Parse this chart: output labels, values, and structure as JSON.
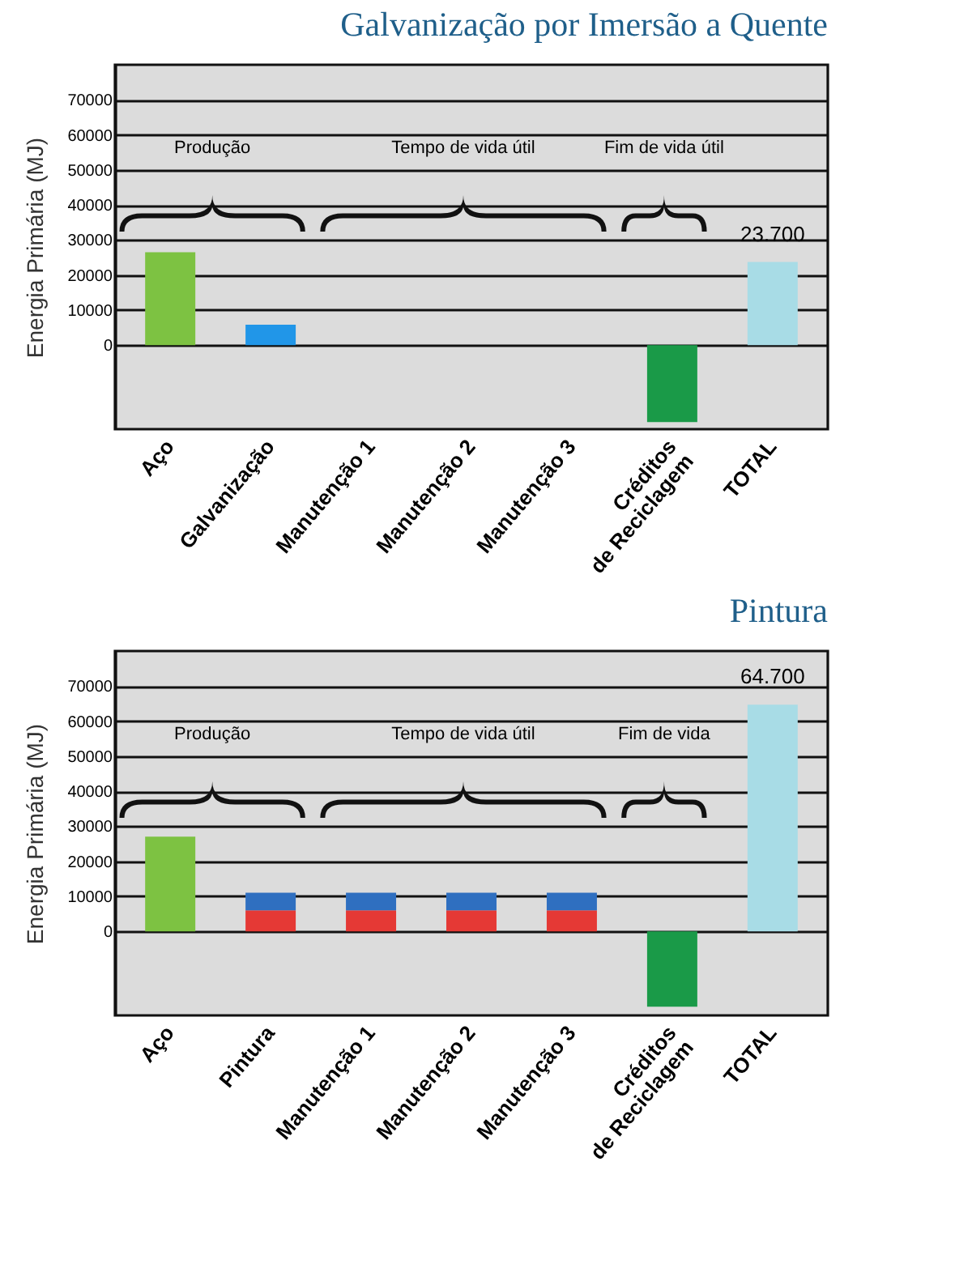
{
  "chart_data": [
    {
      "type": "bar",
      "title": "Galvanização por Imersão a Quente",
      "ylabel": "Energia Primária (MJ)",
      "categories": [
        "Aço",
        "Galvanização",
        "Manutenção 1",
        "Manutenção 2",
        "Manutenção 3",
        "Créditos de Reciclagem",
        "TOTAL"
      ],
      "values": [
        26500,
        5800,
        null,
        null,
        null,
        -22000,
        23700
      ],
      "colors": [
        "#7dc242",
        "#2196e8",
        null,
        null,
        null,
        "#1a9a48",
        "#a8dce6"
      ],
      "value_labels": [
        null,
        null,
        null,
        null,
        null,
        null,
        "23.700"
      ],
      "ylim": [
        -24000,
        80000
      ],
      "yticks": [
        0,
        10000,
        20000,
        30000,
        40000,
        50000,
        60000,
        70000
      ],
      "grid": "y",
      "annotations": [
        "Produção",
        "Tempo de vida útil",
        "Fim de vida útil"
      ]
    },
    {
      "type": "bar",
      "title": "Pintura",
      "ylabel": "Energia Primária (MJ)",
      "stacked": true,
      "categories": [
        "Aço",
        "Pintura",
        "Manutenção 1",
        "Manutenção 2",
        "Manutenção 3",
        "Créditos de Reciclagem",
        "TOTAL"
      ],
      "series": [
        {
          "colors": [
            "#7dc242",
            "#e53935",
            "#e53935",
            "#e53935",
            "#e53935",
            "#1a9a48",
            "#a8dce6"
          ],
          "values": [
            27000,
            6000,
            6000,
            6000,
            6000,
            -21500,
            64700
          ],
          "value_labels": [
            null,
            null,
            null,
            null,
            null,
            null,
            "64.700"
          ]
        },
        {
          "color": "#2f6fc0",
          "values": [
            null,
            5000,
            5000,
            5000,
            5000,
            null,
            null
          ]
        }
      ],
      "ylim": [
        -24000,
        80000
      ],
      "yticks": [
        0,
        10000,
        20000,
        30000,
        40000,
        50000,
        60000,
        70000
      ],
      "grid": "y",
      "annotations": [
        "Produção",
        "Tempo de vida útil",
        "Fim de vida"
      ]
    }
  ]
}
